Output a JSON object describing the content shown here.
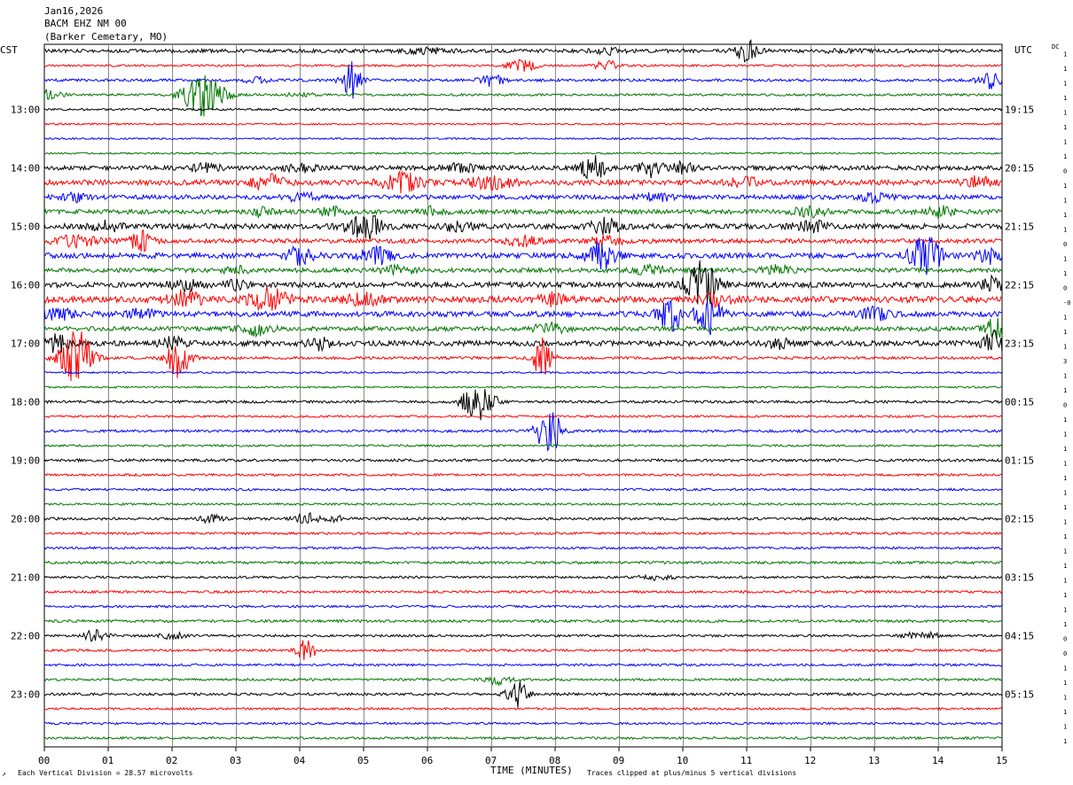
{
  "header": {
    "date": "Jan16,2026",
    "station": "BACM EHZ NM 00",
    "location": "(Barker Cemetary, MO)"
  },
  "left_axis_label": "CST",
  "right_axis_label": "UTC",
  "dc_label": "DC",
  "footer": {
    "corner_mark": "↗",
    "vertical_division": "Each Vertical Division =   28.57 microvolts",
    "clip_note": "Traces clipped at plus/minus 5 vertical divisions"
  },
  "chart_data": {
    "type": "line",
    "subtype": "helicorder",
    "xlabel": "TIME (MINUTES)",
    "x_ticks": [
      "00",
      "01",
      "02",
      "03",
      "04",
      "05",
      "06",
      "07",
      "08",
      "09",
      "10",
      "11",
      "12",
      "13",
      "14",
      "15"
    ],
    "xlim": [
      0,
      15
    ],
    "minutes_per_line": 15,
    "line_colors": [
      "#000000",
      "#ff0000",
      "#0000ff",
      "#007700"
    ],
    "left_time_labels": [
      {
        "line": 4,
        "text": "13:00"
      },
      {
        "line": 8,
        "text": "14:00"
      },
      {
        "line": 12,
        "text": "15:00"
      },
      {
        "line": 16,
        "text": "16:00"
      },
      {
        "line": 20,
        "text": "17:00"
      },
      {
        "line": 24,
        "text": "18:00"
      },
      {
        "line": 28,
        "text": "19:00"
      },
      {
        "line": 32,
        "text": "20:00"
      },
      {
        "line": 36,
        "text": "21:00"
      },
      {
        "line": 40,
        "text": "22:00"
      },
      {
        "line": 44,
        "text": "23:00"
      }
    ],
    "right_time_labels": [
      {
        "line": 4,
        "text": "19:15"
      },
      {
        "line": 8,
        "text": "20:15"
      },
      {
        "line": 12,
        "text": "21:15"
      },
      {
        "line": 16,
        "text": "22:15"
      },
      {
        "line": 20,
        "text": "23:15"
      },
      {
        "line": 24,
        "text": "00:15"
      },
      {
        "line": 28,
        "text": "01:15"
      },
      {
        "line": 32,
        "text": "02:15"
      },
      {
        "line": 36,
        "text": "03:15"
      },
      {
        "line": 40,
        "text": "04:15"
      },
      {
        "line": 44,
        "text": "05:15"
      }
    ],
    "dc_offsets": [
      "1",
      "1",
      "1",
      "1",
      "1",
      "1",
      "1",
      "1",
      "0",
      "1",
      "1",
      "1",
      "1",
      "0",
      "1",
      "1",
      "0",
      "-0",
      "1",
      "1",
      "1",
      "3",
      "1",
      "1",
      "0",
      "1",
      "1",
      "1",
      "1",
      "1",
      "1",
      "1",
      "1",
      "1",
      "1",
      "1",
      "1",
      "1",
      "1",
      "1",
      "0",
      "0",
      "1",
      "1",
      "1",
      "1",
      "1",
      "1"
    ],
    "traces": [
      {
        "noise": 2.0,
        "events": [
          [
            6.0,
            3,
            3
          ],
          [
            8.8,
            3,
            2
          ],
          [
            11.0,
            12,
            1.5
          ],
          [
            12.5,
            2,
            2
          ]
        ]
      },
      {
        "noise": 1.2,
        "events": [
          [
            7.5,
            6,
            2
          ],
          [
            8.8,
            6,
            1.5
          ]
        ]
      },
      {
        "noise": 1.5,
        "events": [
          [
            3.3,
            4,
            1.5
          ],
          [
            4.8,
            22,
            1.2
          ],
          [
            7.0,
            8,
            1.5
          ],
          [
            14.8,
            9,
            1.5
          ]
        ]
      },
      {
        "noise": 1.3,
        "events": [
          [
            0.1,
            6,
            1.5
          ],
          [
            2.5,
            26,
            2.5
          ],
          [
            4.0,
            2,
            2
          ]
        ]
      },
      {
        "noise": 1.3,
        "events": []
      },
      {
        "noise": 1.0,
        "events": []
      },
      {
        "noise": 1.0,
        "events": []
      },
      {
        "noise": 1.0,
        "events": []
      },
      {
        "noise": 2.5,
        "events": [
          [
            2.5,
            5,
            2
          ],
          [
            4.0,
            4,
            2
          ],
          [
            6.5,
            5,
            2
          ],
          [
            8.6,
            14,
            1.5
          ],
          [
            9.5,
            10,
            1.5
          ],
          [
            10.0,
            6,
            1.5
          ]
        ]
      },
      {
        "noise": 3.0,
        "events": [
          [
            3.5,
            9,
            2
          ],
          [
            5.6,
            10,
            2.5
          ],
          [
            7.0,
            6,
            3
          ],
          [
            11.0,
            6,
            2
          ],
          [
            14.6,
            6,
            2
          ]
        ]
      },
      {
        "noise": 2.5,
        "events": [
          [
            4.0,
            5,
            2
          ],
          [
            0.5,
            4,
            2
          ],
          [
            9.6,
            4,
            2
          ],
          [
            13.0,
            4,
            2
          ]
        ]
      },
      {
        "noise": 2.5,
        "events": [
          [
            3.4,
            5,
            1.5
          ],
          [
            4.5,
            5,
            1.5
          ],
          [
            6.0,
            5,
            2
          ],
          [
            12.0,
            6,
            2
          ],
          [
            14.0,
            6,
            2
          ]
        ]
      },
      {
        "noise": 3.0,
        "events": [
          [
            1.0,
            5,
            2
          ],
          [
            5.0,
            14,
            2.5
          ],
          [
            6.5,
            5,
            2
          ],
          [
            8.8,
            8,
            2
          ],
          [
            12.0,
            6,
            2
          ]
        ]
      },
      {
        "noise": 2.5,
        "events": [
          [
            0.5,
            6,
            3
          ],
          [
            1.5,
            11,
            1.5
          ],
          [
            7.5,
            5,
            2
          ],
          [
            8.8,
            5,
            2
          ]
        ]
      },
      {
        "noise": 3.0,
        "events": [
          [
            4.0,
            9,
            2
          ],
          [
            5.2,
            9,
            2
          ],
          [
            8.7,
            15,
            2
          ],
          [
            13.8,
            22,
            2
          ],
          [
            14.8,
            9,
            1.5
          ]
        ]
      },
      {
        "noise": 2.5,
        "events": [
          [
            3.0,
            4,
            1.5
          ],
          [
            5.5,
            5,
            2
          ],
          [
            9.5,
            5,
            2
          ],
          [
            11.5,
            5,
            2
          ]
        ]
      },
      {
        "noise": 3.0,
        "events": [
          [
            2.2,
            6,
            2
          ],
          [
            3.0,
            4,
            1.5
          ],
          [
            10.3,
            26,
            2
          ],
          [
            14.9,
            10,
            1.5
          ]
        ]
      },
      {
        "noise": 3.5,
        "events": [
          [
            2.2,
            9,
            2
          ],
          [
            3.5,
            12,
            2.5
          ],
          [
            5.0,
            8,
            2
          ],
          [
            8.0,
            6,
            2
          ],
          [
            10.5,
            6,
            2
          ]
        ]
      },
      {
        "noise": 3.0,
        "events": [
          [
            0.2,
            6,
            2
          ],
          [
            1.5,
            5,
            2
          ],
          [
            9.8,
            20,
            1.5
          ],
          [
            10.4,
            24,
            1.5
          ],
          [
            13.0,
            6,
            2
          ]
        ]
      },
      {
        "noise": 2.5,
        "events": [
          [
            3.3,
            7,
            2
          ],
          [
            7.9,
            6,
            2
          ],
          [
            14.9,
            12,
            1.5
          ]
        ]
      },
      {
        "noise": 3.0,
        "events": [
          [
            0.2,
            10,
            1.5
          ],
          [
            2.0,
            8,
            1.5
          ],
          [
            4.3,
            6,
            1.5
          ],
          [
            11.5,
            5,
            1.5
          ],
          [
            14.9,
            14,
            1.5
          ]
        ]
      },
      {
        "noise": 1.5,
        "events": [
          [
            0.5,
            32,
            2
          ],
          [
            2.1,
            22,
            1.5
          ],
          [
            7.8,
            22,
            1.2
          ]
        ]
      },
      {
        "noise": 1.0,
        "events": []
      },
      {
        "noise": 1.0,
        "events": []
      },
      {
        "noise": 1.5,
        "events": [
          [
            6.8,
            28,
            1.8
          ]
        ]
      },
      {
        "noise": 1.2,
        "events": []
      },
      {
        "noise": 1.5,
        "events": [
          [
            7.9,
            28,
            1.5
          ]
        ]
      },
      {
        "noise": 1.2,
        "events": []
      },
      {
        "noise": 1.5,
        "events": []
      },
      {
        "noise": 1.3,
        "events": []
      },
      {
        "noise": 1.3,
        "events": []
      },
      {
        "noise": 1.2,
        "events": []
      },
      {
        "noise": 1.5,
        "events": [
          [
            2.6,
            4,
            1.5
          ],
          [
            4.1,
            6,
            1.5
          ],
          [
            4.6,
            3,
            1.5
          ]
        ]
      },
      {
        "noise": 1.3,
        "events": []
      },
      {
        "noise": 1.3,
        "events": []
      },
      {
        "noise": 1.5,
        "events": []
      },
      {
        "noise": 1.3,
        "events": [
          [
            9.6,
            3,
            2
          ]
        ]
      },
      {
        "noise": 1.3,
        "events": []
      },
      {
        "noise": 1.3,
        "events": []
      },
      {
        "noise": 1.5,
        "events": []
      },
      {
        "noise": 1.3,
        "events": [
          [
            0.8,
            6,
            1.5
          ],
          [
            2.0,
            4,
            1.5
          ],
          [
            13.6,
            3,
            1.5
          ],
          [
            13.9,
            3,
            1.5
          ]
        ]
      },
      {
        "noise": 1.3,
        "events": [
          [
            4.1,
            12,
            1.2
          ]
        ]
      },
      {
        "noise": 1.3,
        "events": []
      },
      {
        "noise": 1.3,
        "events": [
          [
            7.1,
            6,
            1.5
          ]
        ]
      },
      {
        "noise": 1.5,
        "events": [
          [
            7.4,
            18,
            1.2
          ]
        ]
      },
      {
        "noise": 1.2,
        "events": []
      },
      {
        "noise": 1.2,
        "events": []
      },
      {
        "noise": 1.3,
        "events": []
      }
    ]
  }
}
